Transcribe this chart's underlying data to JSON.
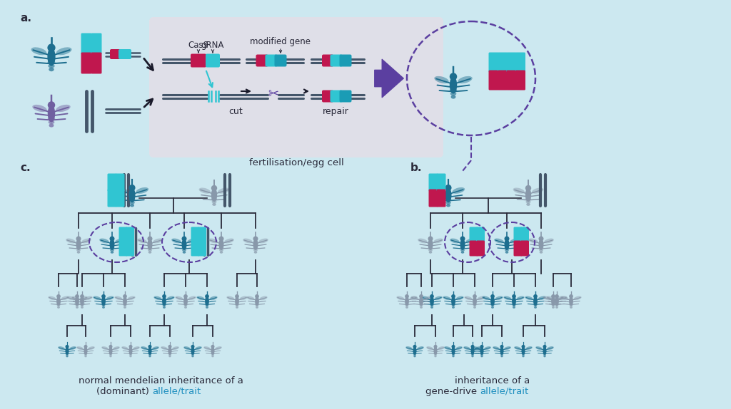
{
  "bg_color": "#cce8f0",
  "dark_teal": "#1d6e8f",
  "mid_teal": "#1a9cb5",
  "light_teal": "#30c5d2",
  "crimson": "#c0174e",
  "purple": "#5b3fa0",
  "gray_mosquito": "#8898aa",
  "panel_bg": "#e2dfe8",
  "text_color": "#2a2a3a",
  "allele_color": "#2090c0",
  "dna_color": "#44566a",
  "label_a": "a.",
  "label_b": "b.",
  "label_c": "c.",
  "cas9_label": "Cas9",
  "grna_label": "gRNA",
  "modgene_label": "modified gene",
  "cut_label": "cut",
  "repair_label": "repair",
  "ferti_label": "fertilisation/egg cell",
  "caption_c1": "normal mendelian inheritance of a",
  "caption_c2": "(dominant) ",
  "caption_c3": "allele/trait",
  "caption_b1": "inheritance of a",
  "caption_b2": "gene-drive ",
  "caption_b3": "allele/trait"
}
